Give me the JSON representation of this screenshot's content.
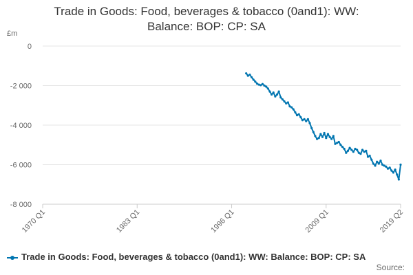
{
  "chart_data": {
    "type": "line",
    "title": [
      "Trade in Goods: Food, beverages & tobacco (0and1): WW:",
      "Balance: BOP: CP: SA"
    ],
    "ylabel": "£m",
    "xlabel": "",
    "ylim": [
      -8000,
      0
    ],
    "yticks": [
      0,
      -2000,
      -4000,
      -6000,
      -8000
    ],
    "ytick_labels": [
      "0",
      "-2 000",
      "-4 000",
      "-6 000",
      "-8 000"
    ],
    "xlim": [
      1970.0,
      2019.25
    ],
    "xticks": [
      1970.0,
      1983.0,
      1996.0,
      2009.0,
      2019.25
    ],
    "xtick_labels": [
      "1970 Q1",
      "1983 Q1",
      "1996 Q1",
      "2009 Q1",
      "2019 Q2"
    ],
    "grid": true,
    "legend": "bottom",
    "series": [
      {
        "name": "Trade in Goods: Food, beverages & tobacco (0and1): WW: Balance: BOP: CP: SA",
        "color": "#0075b0",
        "x": [
          1998.0,
          1998.25,
          1998.5,
          1998.75,
          1999.0,
          1999.25,
          1999.5,
          1999.75,
          2000.0,
          2000.25,
          2000.5,
          2000.75,
          2001.0,
          2001.25,
          2001.5,
          2001.75,
          2002.0,
          2002.25,
          2002.5,
          2002.75,
          2003.0,
          2003.25,
          2003.5,
          2003.75,
          2004.0,
          2004.25,
          2004.5,
          2004.75,
          2005.0,
          2005.25,
          2005.5,
          2005.75,
          2006.0,
          2006.25,
          2006.5,
          2006.75,
          2007.0,
          2007.25,
          2007.5,
          2007.75,
          2008.0,
          2008.25,
          2008.5,
          2008.75,
          2009.0,
          2009.25,
          2009.5,
          2009.75,
          2010.0,
          2010.25,
          2010.5,
          2010.75,
          2011.0,
          2011.25,
          2011.5,
          2011.75,
          2012.0,
          2012.25,
          2012.5,
          2012.75,
          2013.0,
          2013.25,
          2013.5,
          2013.75,
          2014.0,
          2014.25,
          2014.5,
          2014.75,
          2015.0,
          2015.25,
          2015.5,
          2015.75,
          2016.0,
          2016.25,
          2016.5,
          2016.75,
          2017.0,
          2017.25,
          2017.5,
          2017.75,
          2018.0,
          2018.25,
          2018.5,
          2018.75,
          2019.0,
          2019.25
        ],
        "values": [
          -1380,
          -1500,
          -1450,
          -1580,
          -1700,
          -1800,
          -1900,
          -1950,
          -1980,
          -1920,
          -2000,
          -2050,
          -2150,
          -2300,
          -2450,
          -2350,
          -2550,
          -2450,
          -2300,
          -2600,
          -2700,
          -2800,
          -2900,
          -2850,
          -3050,
          -3100,
          -3200,
          -3350,
          -3500,
          -3450,
          -3600,
          -3750,
          -3700,
          -3800,
          -3700,
          -3900,
          -4150,
          -4350,
          -4550,
          -4700,
          -4650,
          -4450,
          -4600,
          -4400,
          -4650,
          -4450,
          -4600,
          -4700,
          -4550,
          -4950,
          -4900,
          -4850,
          -5000,
          -5100,
          -5200,
          -5400,
          -5300,
          -5150,
          -5250,
          -5350,
          -5200,
          -5250,
          -5400,
          -5450,
          -5250,
          -5350,
          -5300,
          -5600,
          -5550,
          -5750,
          -5950,
          -6050,
          -5850,
          -5950,
          -5800,
          -6000,
          -6050,
          -6100,
          -6200,
          -6150,
          -6300,
          -6400,
          -6250,
          -6500,
          -6750,
          -6000
        ]
      }
    ]
  },
  "source_label": "Source:"
}
